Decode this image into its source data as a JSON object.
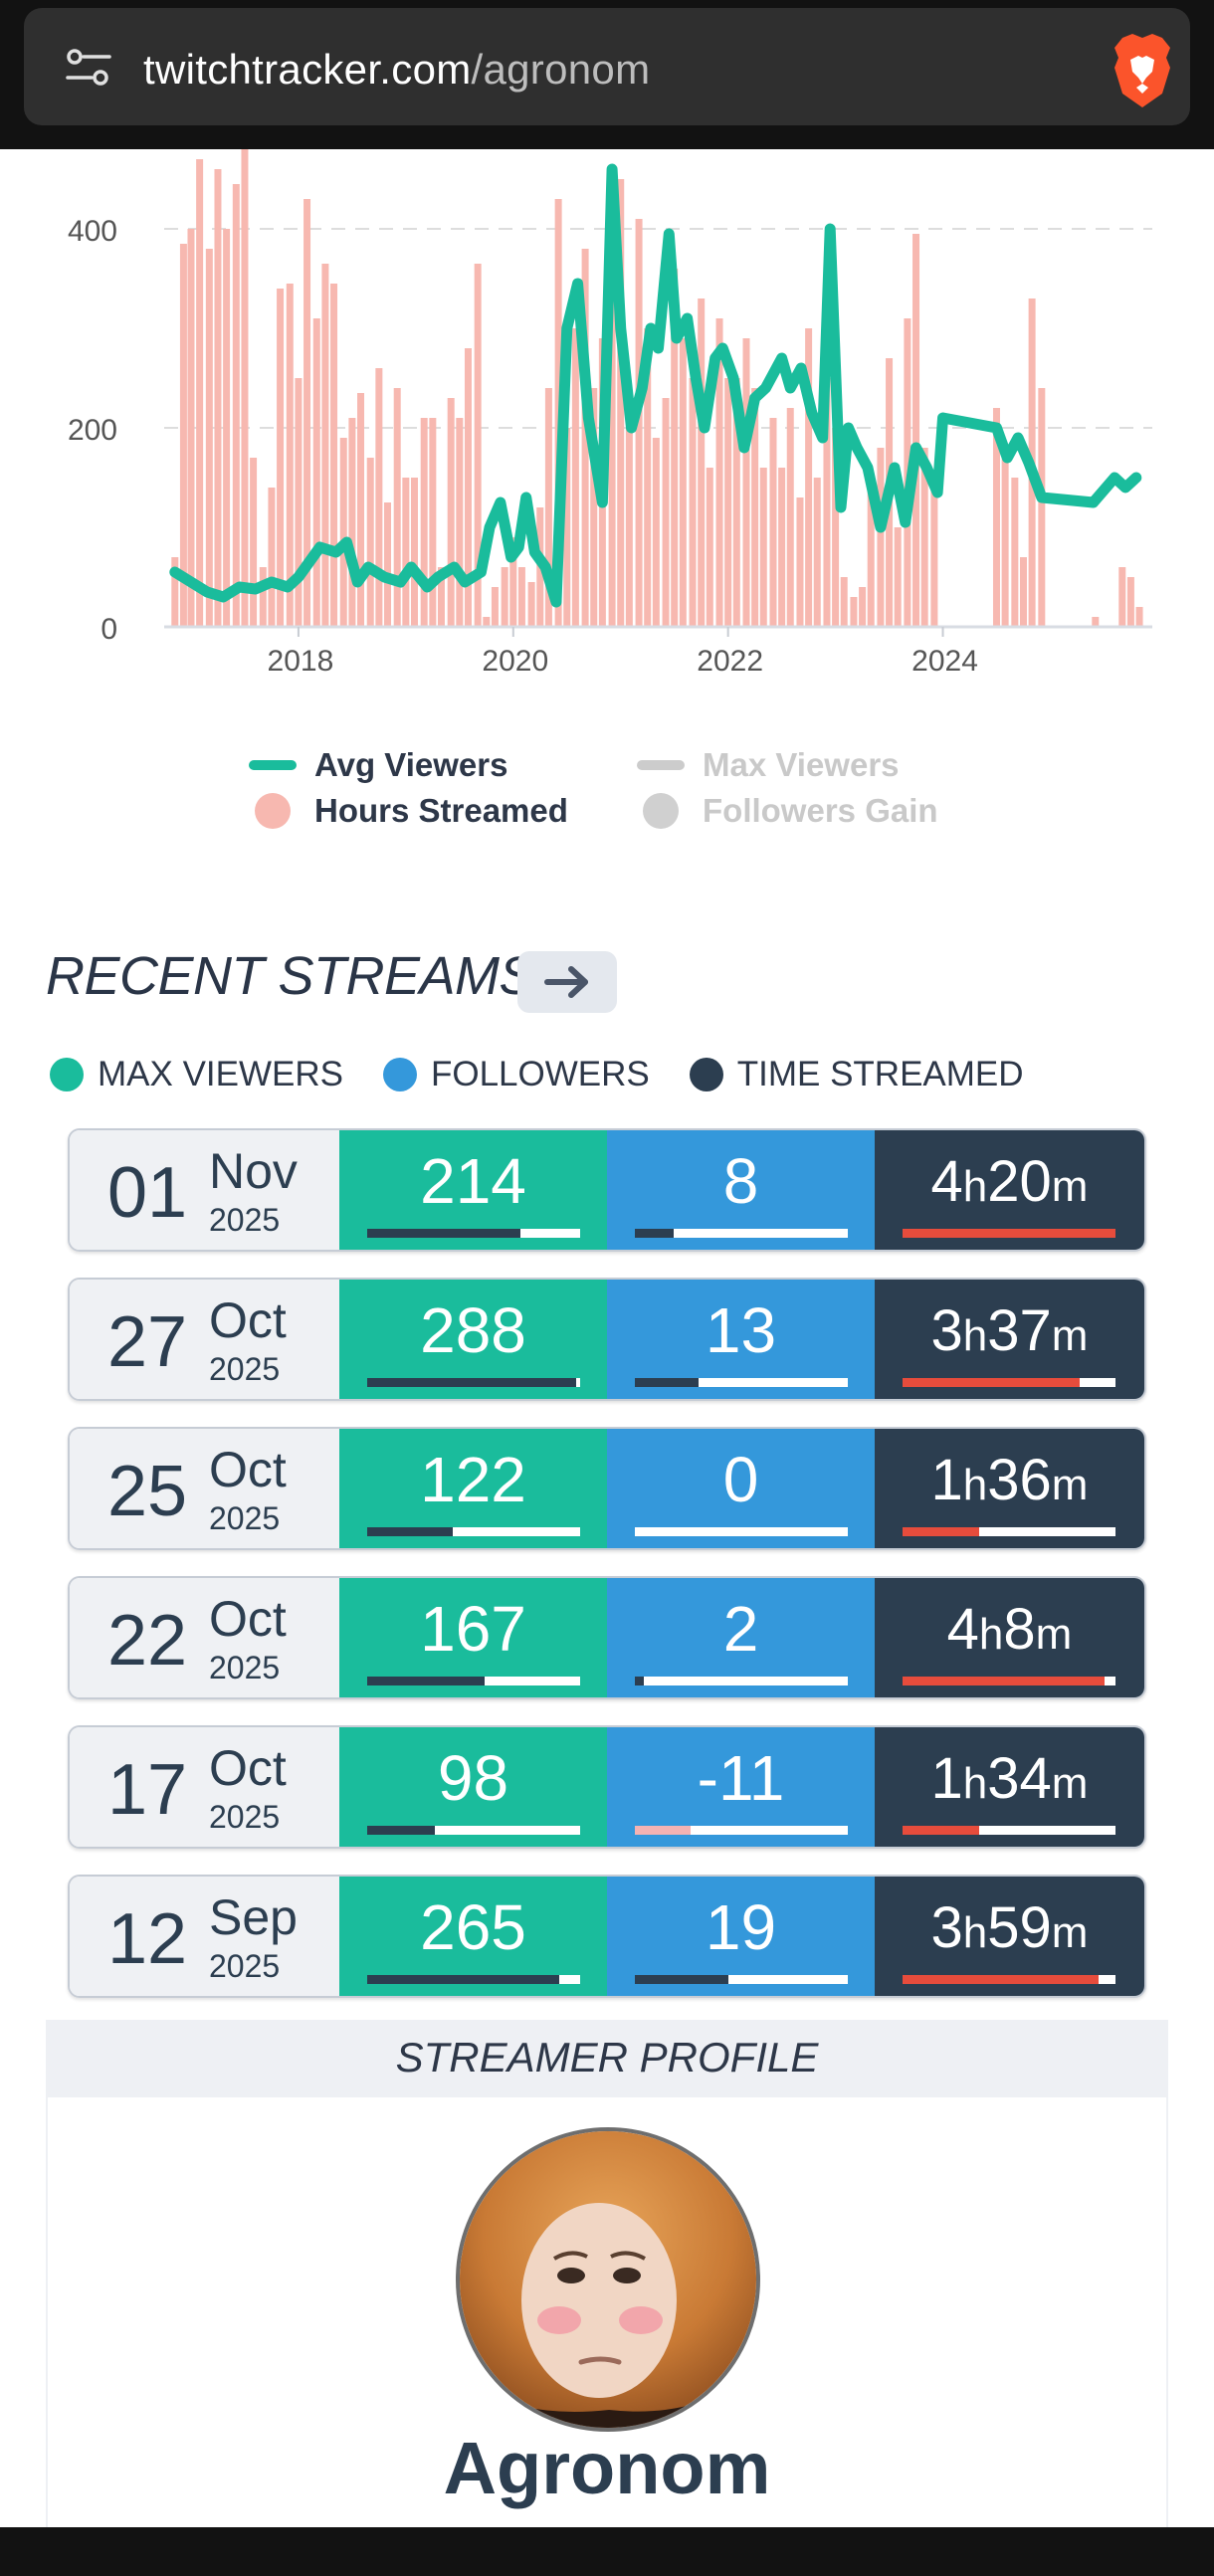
{
  "browser": {
    "url_domain": "twitchtracker.com",
    "url_path": "/agronom"
  },
  "chart_data": {
    "type": "bar+line",
    "x_ticks": [
      "2018",
      "2020",
      "2022",
      "2024"
    ],
    "y_ticks": [
      "0",
      "200",
      "400"
    ],
    "ylim": [
      0,
      480
    ],
    "xlim": [
      2016.75,
      2025.95
    ],
    "colors": {
      "avg_viewers": "#1abc9c",
      "hours_streamed": "#f7b8b0",
      "grid": "#dddddd"
    },
    "series": [
      {
        "name": "Hours Streamed",
        "kind": "bar",
        "x": [
          2016.85,
          2016.93,
          2017.0,
          2017.08,
          2017.17,
          2017.25,
          2017.33,
          2017.42,
          2017.5,
          2017.58,
          2017.67,
          2017.75,
          2017.83,
          2017.92,
          2018.0,
          2018.08,
          2018.17,
          2018.25,
          2018.33,
          2018.42,
          2018.5,
          2018.58,
          2018.67,
          2018.75,
          2018.83,
          2018.92,
          2019.0,
          2019.08,
          2019.17,
          2019.25,
          2019.33,
          2019.42,
          2019.5,
          2019.58,
          2019.67,
          2019.75,
          2019.83,
          2019.92,
          2020.0,
          2020.08,
          2020.17,
          2020.25,
          2020.33,
          2020.42,
          2020.5,
          2020.58,
          2020.67,
          2020.75,
          2020.83,
          2020.92,
          2021.0,
          2021.08,
          2021.17,
          2021.25,
          2021.33,
          2021.42,
          2021.5,
          2021.58,
          2021.67,
          2021.75,
          2021.83,
          2021.92,
          2022.0,
          2022.08,
          2022.17,
          2022.25,
          2022.33,
          2022.42,
          2022.5,
          2022.58,
          2022.67,
          2022.75,
          2022.83,
          2022.92,
          2023.0,
          2023.08,
          2023.17,
          2023.25,
          2023.33,
          2023.42,
          2023.5,
          2023.58,
          2023.67,
          2023.75,
          2023.83,
          2023.92,
          2024.5,
          2024.58,
          2024.67,
          2024.75,
          2024.83,
          2024.92,
          2025.42,
          2025.67,
          2025.75,
          2025.83
        ],
        "values": [
          70,
          385,
          400,
          470,
          380,
          460,
          400,
          445,
          490,
          170,
          60,
          140,
          340,
          345,
          250,
          430,
          310,
          365,
          345,
          190,
          210,
          235,
          170,
          260,
          125,
          240,
          150,
          150,
          210,
          210,
          60,
          230,
          210,
          280,
          365,
          10,
          40,
          60,
          90,
          60,
          45,
          120,
          240,
          430,
          200,
          300,
          380,
          240,
          290,
          410,
          450,
          200,
          410,
          300,
          190,
          230,
          360,
          290,
          250,
          330,
          160,
          310,
          250,
          250,
          290,
          240,
          160,
          210,
          160,
          220,
          130,
          300,
          150,
          250,
          200,
          50,
          30,
          40,
          150,
          180,
          270,
          100,
          310,
          395,
          180,
          140,
          220,
          180,
          150,
          70,
          330,
          240,
          10,
          60,
          50,
          20
        ]
      },
      {
        "name": "Avg Viewers",
        "kind": "line",
        "x": [
          2016.85,
          2017.0,
          2017.15,
          2017.3,
          2017.45,
          2017.6,
          2017.75,
          2017.9,
          2018.0,
          2018.1,
          2018.2,
          2018.35,
          2018.45,
          2018.55,
          2018.65,
          2018.8,
          2018.95,
          2019.05,
          2019.2,
          2019.3,
          2019.45,
          2019.55,
          2019.7,
          2019.78,
          2019.88,
          2019.98,
          2020.05,
          2020.12,
          2020.2,
          2020.3,
          2020.4,
          2020.5,
          2020.6,
          2020.7,
          2020.83,
          2020.92,
          2021.0,
          2021.1,
          2021.2,
          2021.28,
          2021.35,
          2021.45,
          2021.52,
          2021.62,
          2021.7,
          2021.78,
          2021.88,
          2021.95,
          2022.05,
          2022.15,
          2022.25,
          2022.35,
          2022.5,
          2022.58,
          2022.68,
          2022.78,
          2022.88,
          2022.95,
          2023.05,
          2023.12,
          2023.2,
          2023.3,
          2023.42,
          2023.55,
          2023.65,
          2023.75,
          2023.85,
          2023.95,
          2024.0,
          2024.5,
          2024.6,
          2024.7,
          2024.8,
          2024.92,
          2025.4,
          2025.6,
          2025.7,
          2025.8
        ],
        "values": [
          55,
          45,
          35,
          30,
          40,
          38,
          45,
          40,
          50,
          65,
          80,
          75,
          85,
          45,
          60,
          50,
          45,
          60,
          40,
          50,
          60,
          45,
          55,
          100,
          125,
          70,
          80,
          130,
          75,
          60,
          25,
          300,
          345,
          210,
          125,
          460,
          300,
          200,
          240,
          300,
          280,
          395,
          290,
          310,
          250,
          200,
          270,
          280,
          250,
          180,
          230,
          240,
          270,
          240,
          260,
          215,
          190,
          400,
          120,
          200,
          180,
          160,
          100,
          160,
          105,
          180,
          160,
          135,
          210,
          200,
          170,
          190,
          165,
          130,
          125,
          150,
          140,
          150
        ]
      }
    ],
    "legend": [
      {
        "label": "Avg Viewers",
        "active": true,
        "color": "#1abc9c"
      },
      {
        "label": "Max Viewers",
        "active": false,
        "color": "#cccccc"
      },
      {
        "label": "Hours Streamed",
        "active": true,
        "color": "#f7b8b0"
      },
      {
        "label": "Followers Gain",
        "active": false,
        "color": "#cccccc"
      }
    ]
  },
  "recent": {
    "title": "RECENT STREAMS",
    "keys": {
      "max": "MAX VIEWERS",
      "followers": "FOLLOWERS",
      "time": "TIME STREAMED"
    },
    "rows": [
      {
        "day": "01",
        "month": "Nov",
        "year": "2025",
        "max": "214",
        "followers": "8",
        "h": "4",
        "m": "20",
        "max_frac": 0.72,
        "fol_frac": 0.18,
        "time_frac": 1.0
      },
      {
        "day": "27",
        "month": "Oct",
        "year": "2025",
        "max": "288",
        "followers": "13",
        "h": "3",
        "m": "37",
        "max_frac": 0.98,
        "fol_frac": 0.3,
        "time_frac": 0.83
      },
      {
        "day": "25",
        "month": "Oct",
        "year": "2025",
        "max": "122",
        "followers": "0",
        "h": "1",
        "m": "36",
        "max_frac": 0.4,
        "fol_frac": 0.0,
        "time_frac": 0.36
      },
      {
        "day": "22",
        "month": "Oct",
        "year": "2025",
        "max": "167",
        "followers": "2",
        "h": "4",
        "m": "8",
        "max_frac": 0.55,
        "fol_frac": 0.04,
        "time_frac": 0.95
      },
      {
        "day": "17",
        "month": "Oct",
        "year": "2025",
        "max": "98",
        "followers": "-11",
        "h": "1",
        "m": "34",
        "max_frac": 0.32,
        "fol_frac": 0.26,
        "time_frac": 0.36
      },
      {
        "day": "12",
        "month": "Sep",
        "year": "2025",
        "max": "265",
        "followers": "19",
        "h": "3",
        "m": "59",
        "max_frac": 0.9,
        "fol_frac": 0.44,
        "time_frac": 0.92
      }
    ]
  },
  "profile": {
    "header": "STREAMER PROFILE",
    "name": "Agronom"
  },
  "units": {
    "h": "h",
    "m": "m"
  }
}
